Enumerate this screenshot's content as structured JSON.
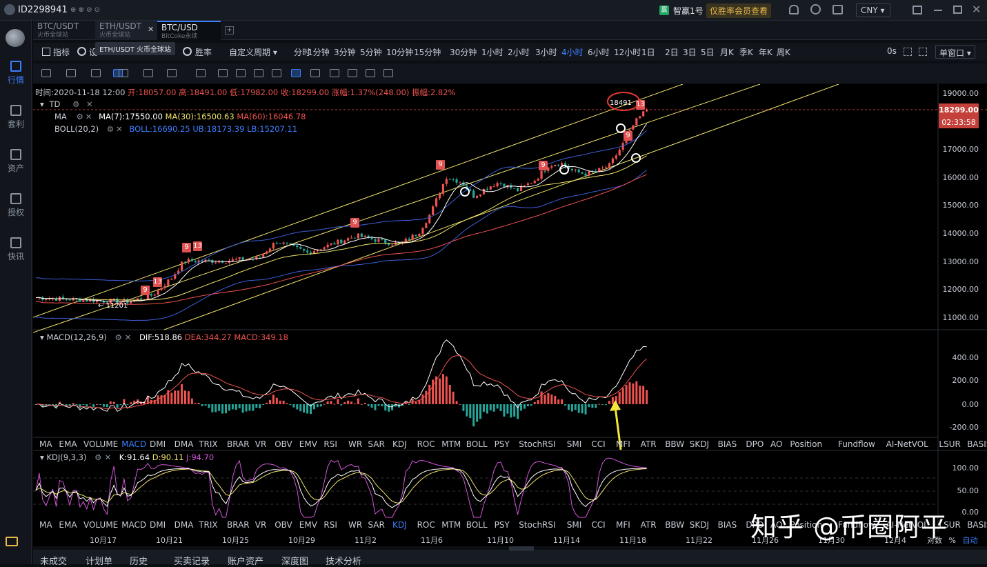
{
  "user_id": "ID2298941",
  "promo": {
    "name": "智赢1号",
    "text": "仅胜率会员查看"
  },
  "currency": "CNY",
  "tabs": [
    {
      "pair": "BTC/USDT",
      "exchange": "火币全球站"
    },
    {
      "pair": "ETH/USDT",
      "exchange": "火币全球站"
    },
    {
      "pair": "BTC/USD",
      "exchange": "BitCoke永续"
    }
  ],
  "tooltip": "ETH/USDT 火币全球站",
  "nav": [
    "行情",
    "套利",
    "资产",
    "授权",
    "快讯"
  ],
  "toolbar": {
    "indicator": "指标",
    "settings": "设",
    "winrate": "胜率",
    "custom_period": "自定义周期",
    "periods": [
      "分时",
      "1分钟",
      "3分钟",
      "5分钟",
      "10分钟",
      "15分钟",
      "30分钟",
      "1小时",
      "2小时",
      "3小时",
      "4小时",
      "6小时",
      "12小时",
      "1日",
      "2日",
      "3日",
      "5日",
      "月K",
      "季K",
      "年K",
      "周K"
    ],
    "active_period": "4小时",
    "right_time": "0s",
    "window": "单窗口"
  },
  "ohlc": {
    "time": "时间:2020-11-18 12:00",
    "open": "开:18057.00",
    "high": "高:18491.00",
    "low": "低:17982.00",
    "close": "收:18299.00",
    "change": "涨幅:1.37%(248.00)",
    "amp": "振幅:2.82%"
  },
  "legend": {
    "td": "TD",
    "ma": "MA",
    "ma7": "MA(7):17550.00",
    "ma30": "MA(30):16500.63",
    "ma60": "MA(60):16046.78",
    "boll": "BOLL(20,2)",
    "boll_v": "BOLL:16690.25",
    "ub": "UB:18173.39",
    "lb": "LB:15207.11"
  },
  "price_axis": [
    "19000.00",
    "18000.00",
    "17000.00",
    "16000.00",
    "15000.00",
    "14000.00",
    "13000.00",
    "12000.00",
    "11000.00"
  ],
  "current_price": "18299.00",
  "countdown": "02:33:58",
  "high_label": "18491",
  "low_label": "11201",
  "td_marks": [
    {
      "t": "9"
    },
    {
      "t": "13"
    },
    {
      "t": "9"
    },
    {
      "t": "13"
    },
    {
      "t": "9"
    },
    {
      "t": "9"
    },
    {
      "t": "9"
    },
    {
      "t": "9"
    },
    {
      "t": "13"
    }
  ],
  "macd": {
    "title": "MACD(12,26,9)",
    "dif": "DIF:518.86",
    "dea": "DEA:344.27",
    "macd": "MACD:349.18",
    "axis": [
      "400.00",
      "200.00",
      "0.00",
      "-200.00"
    ]
  },
  "kdj": {
    "title": "KDJ(9,3,3)",
    "k": "K:91.64",
    "d": "D:90.11",
    "j": "J:94.70",
    "axis": [
      "100.00",
      "50.00",
      "0.00"
    ]
  },
  "indicators": [
    "MA",
    "EMA",
    "VOLUME",
    "MACD",
    "DMI",
    "DMA",
    "TRIX",
    "BRAR",
    "VR",
    "OBV",
    "EMV",
    "RSI",
    "WR",
    "SAR",
    "KDJ",
    "ROC",
    "MTM",
    "BOLL",
    "PSY",
    "StochRSI",
    "SMI",
    "CCI",
    "MFI",
    "ATR",
    "BBW",
    "SKDJ",
    "BIAS",
    "DPO",
    "AO",
    "Position",
    "Fundflow",
    "AI-NetVOL",
    "LSUR",
    "BASIS"
  ],
  "dates": [
    "10月17",
    "10月21",
    "10月25",
    "10月29",
    "11月2",
    "11月6",
    "11月10",
    "11月14",
    "11月18",
    "11月22",
    "11月26",
    "11月30",
    "12月4"
  ],
  "axis_mode": {
    "log": "对数",
    "pct": "%",
    "auto": "自动"
  },
  "bottom_tabs": [
    "未成交",
    "计划单",
    "历史",
    "买卖记录",
    "账户资产",
    "深度图",
    "技术分析"
  ],
  "watermark": "知乎 @币圈阿平",
  "colors": {
    "up": "#ef5350",
    "down": "#26a69a",
    "accent": "#3d7eff",
    "yellow": "#f0e36b",
    "white": "#ffffff"
  }
}
